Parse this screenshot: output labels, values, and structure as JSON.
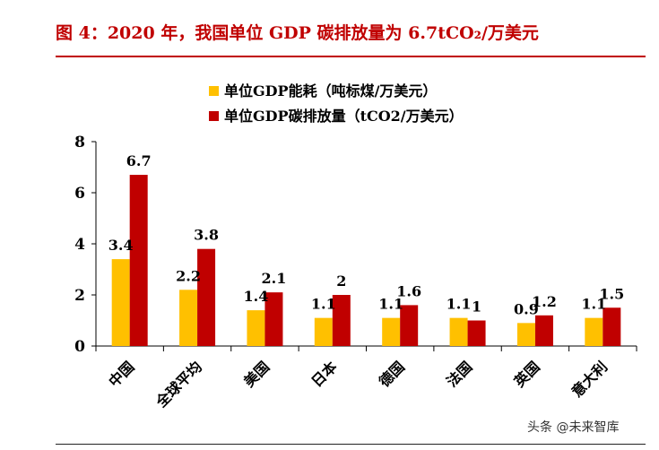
{
  "figure_title": "图 4：2020 年，我国单位 GDP 碳排放量为 6.7tCO₂/万美元",
  "watermark": "头条 @未来智库",
  "chart_data": {
    "type": "bar",
    "categories": [
      "中国",
      "全球平均",
      "美国",
      "日本",
      "德国",
      "法国",
      "英国",
      "意大利"
    ],
    "series": [
      {
        "name": "单位GDP能耗（吨标煤/万美元）",
        "values": [
          3.4,
          2.2,
          1.4,
          1.1,
          1.1,
          1.1,
          0.9,
          1.1
        ],
        "color": "#ffc000"
      },
      {
        "name": "单位GDP碳排放量（tCO2/万美元）",
        "values": [
          6.7,
          3.8,
          2.1,
          2,
          1.6,
          1,
          1.2,
          1.5
        ],
        "color": "#c00000"
      }
    ],
    "data_labels": [
      [
        "3.4",
        "2.2",
        "1.4",
        "1.1",
        "1.1",
        "1.1",
        "0.9",
        "1.1"
      ],
      [
        "6.7",
        "3.8",
        "2.1",
        "2",
        "1.6",
        "1",
        "1.2",
        "1.5"
      ]
    ],
    "yticks": [
      "0",
      "2",
      "4",
      "6",
      "8"
    ],
    "ylim": [
      0,
      8
    ],
    "grid": false,
    "legend_position": "top-center"
  }
}
